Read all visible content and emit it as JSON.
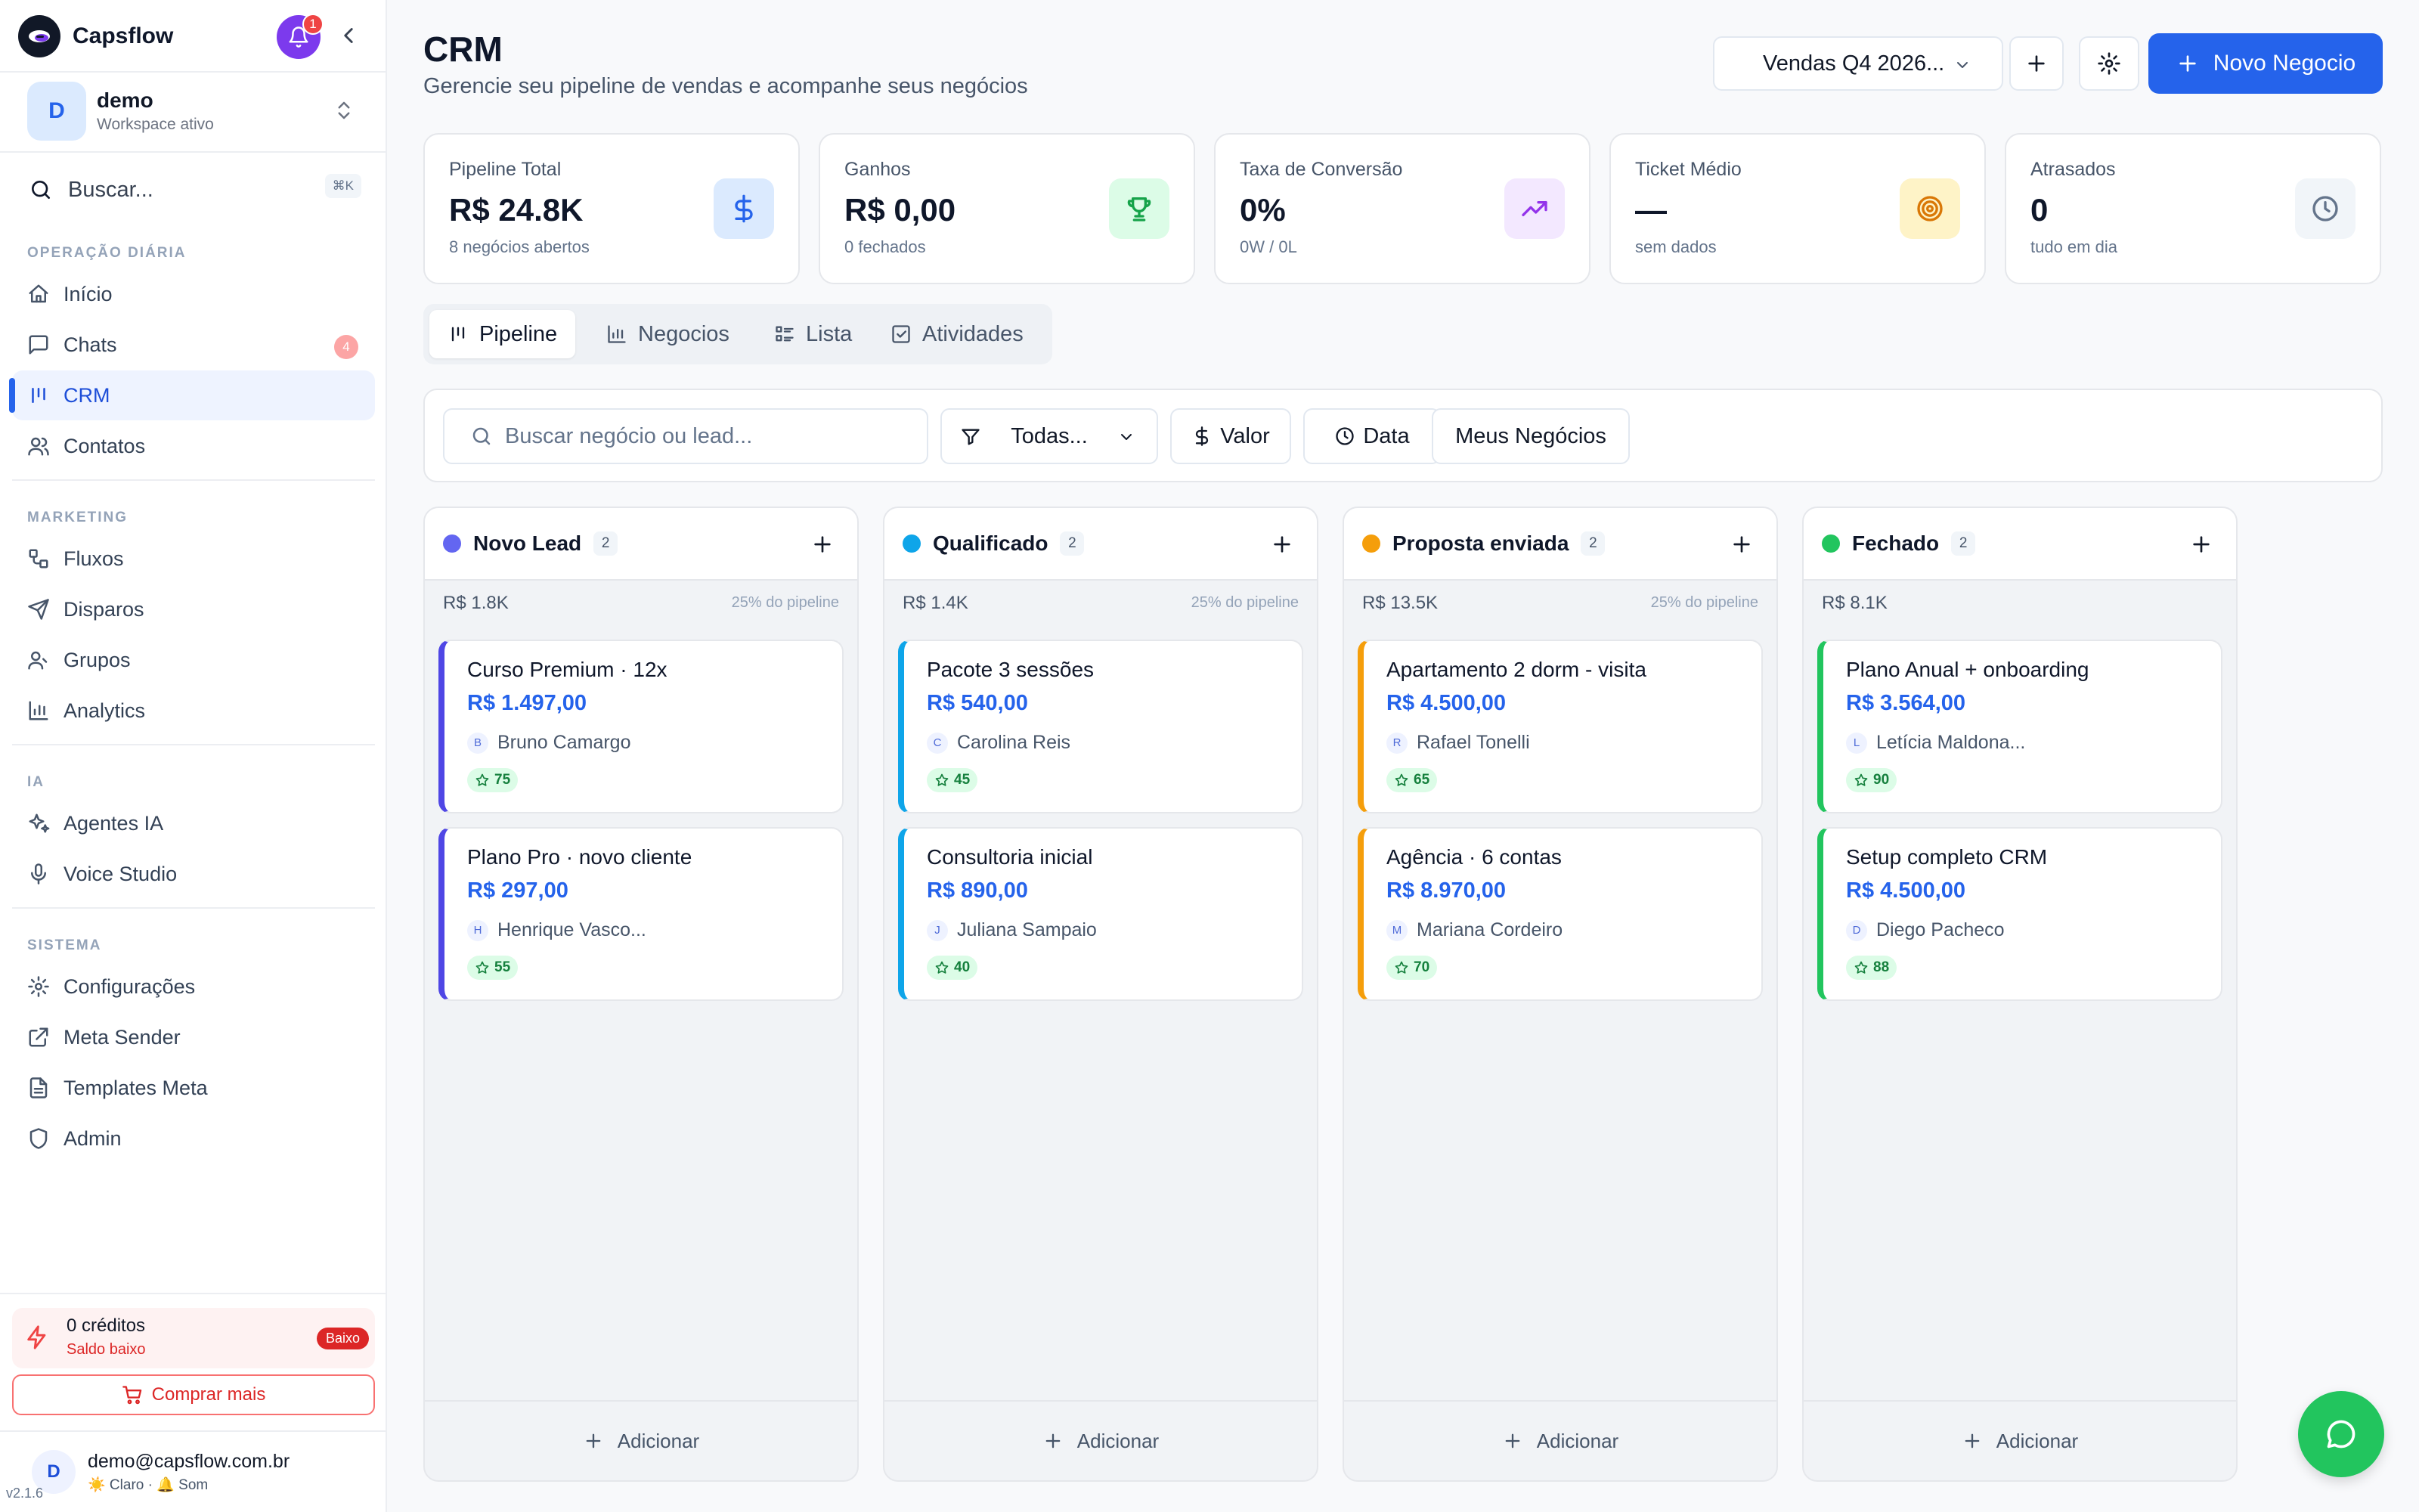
{
  "app": {
    "name": "Capsflow",
    "notifications": "1",
    "version": "v2.1.6"
  },
  "workspace": {
    "avatar": "D",
    "name": "demo",
    "subtitle": "Workspace ativo"
  },
  "search": {
    "placeholder": "Buscar...",
    "shortcut": "⌘K"
  },
  "sidebar": {
    "sections": [
      {
        "title": "OPERAÇÃO DIÁRIA",
        "items": [
          {
            "label": "Início",
            "icon": "home-icon"
          },
          {
            "label": "Chats",
            "icon": "chat-icon",
            "badge": "4"
          },
          {
            "label": "CRM",
            "icon": "kanban-icon",
            "active": true
          },
          {
            "label": "Contatos",
            "icon": "users-icon"
          }
        ]
      },
      {
        "title": "MARKETING",
        "items": [
          {
            "label": "Fluxos",
            "icon": "workflow-icon"
          },
          {
            "label": "Disparos",
            "icon": "send-icon"
          },
          {
            "label": "Grupos",
            "icon": "group-icon"
          },
          {
            "label": "Analytics",
            "icon": "bar-chart-icon"
          }
        ]
      },
      {
        "title": "IA",
        "items": [
          {
            "label": "Agentes IA",
            "icon": "sparkles-icon"
          },
          {
            "label": "Voice Studio",
            "icon": "microphone-icon"
          }
        ]
      },
      {
        "title": "SISTEMA",
        "items": [
          {
            "label": "Configurações",
            "icon": "gear-icon"
          },
          {
            "label": "Meta Sender",
            "icon": "external-icon"
          },
          {
            "label": "Templates Meta",
            "icon": "document-icon"
          },
          {
            "label": "Admin",
            "icon": "shield-icon"
          }
        ]
      }
    ]
  },
  "credits": {
    "title": "0 créditos",
    "subtitle": "Saldo baixo",
    "badge": "Baixo",
    "buy_label": "Comprar mais"
  },
  "user": {
    "avatar": "D",
    "email": "demo@capsflow.com.br",
    "prefs": "☀️ Claro · 🔔 Som"
  },
  "header": {
    "title": "CRM",
    "subtitle": "Gerencie seu pipeline de vendas e acompanhe seus negócios",
    "pipeline_select": "Vendas Q4 2026...",
    "new_deal_label": "Novo Negocio"
  },
  "stats": [
    {
      "label": "Pipeline Total",
      "value": "R$ 24.8K",
      "sub": "8 negócios abertos",
      "icon": "dollar-icon",
      "bg": "#dbeafe",
      "color": "#2563eb"
    },
    {
      "label": "Ganhos",
      "value": "R$ 0,00",
      "sub": "0 fechados",
      "icon": "trophy-icon",
      "bg": "#dcfce7",
      "color": "#16a34a"
    },
    {
      "label": "Taxa de Conversão",
      "value": "0%",
      "sub": "0W / 0L",
      "icon": "trend-up-icon",
      "bg": "#f3e8ff",
      "color": "#9333ea"
    },
    {
      "label": "Ticket Médio",
      "value": "—",
      "sub": "sem dados",
      "icon": "target-icon",
      "bg": "#fef3c7",
      "color": "#d97706"
    },
    {
      "label": "Atrasados",
      "value": "0",
      "sub": "tudo em dia",
      "icon": "clock-icon",
      "bg": "#f1f5f9",
      "color": "#64748b"
    }
  ],
  "tabs": [
    {
      "label": "Pipeline",
      "icon": "kanban-icon",
      "active": true
    },
    {
      "label": "Negocios",
      "icon": "bar-chart-icon"
    },
    {
      "label": "Lista",
      "icon": "list-icon"
    },
    {
      "label": "Atividades",
      "icon": "check-square-icon"
    }
  ],
  "filters": {
    "search_placeholder": "Buscar negócio ou lead...",
    "stage": "Todas...",
    "value_label": "Valor",
    "date_label": "Data",
    "mine_label": "Meus Negócios"
  },
  "columns": [
    {
      "title": "Novo Lead",
      "count": "2",
      "total": "R$ 1.8K",
      "pct": "25% do pipeline",
      "color": "#6366f1",
      "border": "#4f46e5",
      "add_label": "Adicionar",
      "cards": [
        {
          "title": "Curso Premium · 12x",
          "value": "R$ 1.497,00",
          "initial": "B",
          "person": "Bruno Camargo",
          "score": "75"
        },
        {
          "title": "Plano Pro · novo cliente",
          "value": "R$ 297,00",
          "initial": "H",
          "person": "Henrique Vasco...",
          "score": "55"
        }
      ]
    },
    {
      "title": "Qualificado",
      "count": "2",
      "total": "R$ 1.4K",
      "pct": "25% do pipeline",
      "color": "#0ea5e9",
      "border": "#0ea5e9",
      "add_label": "Adicionar",
      "cards": [
        {
          "title": "Pacote 3 sessões",
          "value": "R$ 540,00",
          "initial": "C",
          "person": "Carolina Reis",
          "score": "45"
        },
        {
          "title": "Consultoria inicial",
          "value": "R$ 890,00",
          "initial": "J",
          "person": "Juliana Sampaio",
          "score": "40"
        }
      ]
    },
    {
      "title": "Proposta enviada",
      "count": "2",
      "total": "R$ 13.5K",
      "pct": "25% do pipeline",
      "color": "#f59e0b",
      "border": "#f59e0b",
      "add_label": "Adicionar",
      "cards": [
        {
          "title": "Apartamento 2 dorm - visita",
          "value": "R$ 4.500,00",
          "initial": "R",
          "person": "Rafael Tonelli",
          "score": "65"
        },
        {
          "title": "Agência · 6 contas",
          "value": "R$ 8.970,00",
          "initial": "M",
          "person": "Mariana Cordeiro",
          "score": "70"
        }
      ]
    },
    {
      "title": "Fechado",
      "count": "2",
      "total": "R$ 8.1K",
      "pct": "",
      "color": "#22c55e",
      "border": "#22c55e",
      "add_label": "Adicionar",
      "cards": [
        {
          "title": "Plano Anual + onboarding",
          "value": "R$ 3.564,00",
          "initial": "L",
          "person": "Letícia Maldona...",
          "score": "90"
        },
        {
          "title": "Setup completo CRM",
          "value": "R$ 4.500,00",
          "initial": "D",
          "person": "Diego Pacheco",
          "score": "88"
        }
      ]
    }
  ],
  "colors": {
    "accent": "#2563eb",
    "fab": "#22c55e"
  }
}
